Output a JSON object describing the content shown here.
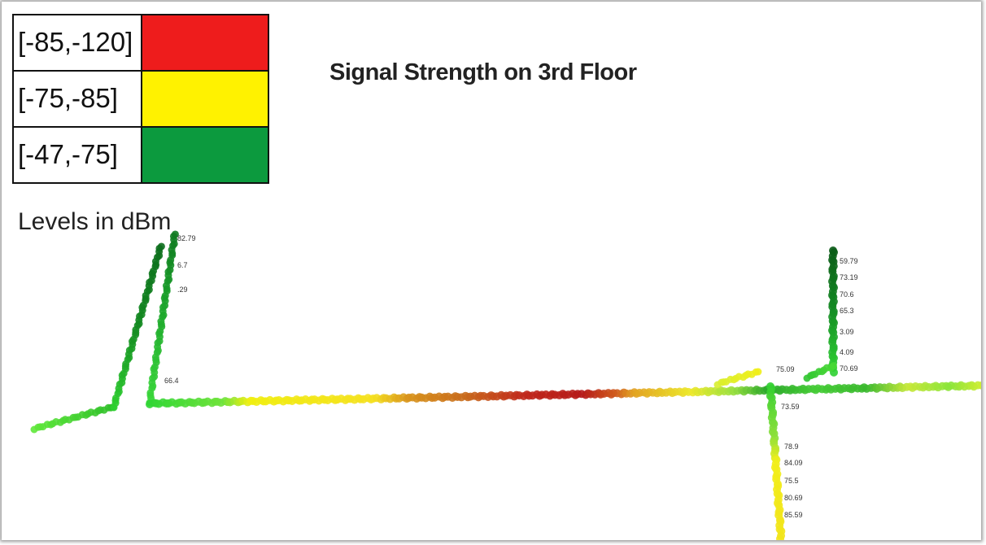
{
  "title": "Signal Strength on 3rd Floor",
  "legend": {
    "rows": [
      {
        "range": "[-85,-120]",
        "color": "#ee1c1c"
      },
      {
        "range": "[-75,-85]",
        "color": "#fff200"
      },
      {
        "range": "[-47,-75]",
        "color": "#0c9a3e"
      }
    ],
    "note": "Levels in dBm"
  },
  "point_labels": [
    "82.79",
    "6.7",
    ".29",
    "66.4",
    "59.79",
    "73.19",
    "70.6",
    "65.3",
    "3.09",
    "4.09",
    "70.69",
    "75.09",
    "73.59",
    "78.9",
    "84.09",
    "75.5",
    "80.69",
    "85.59"
  ]
}
